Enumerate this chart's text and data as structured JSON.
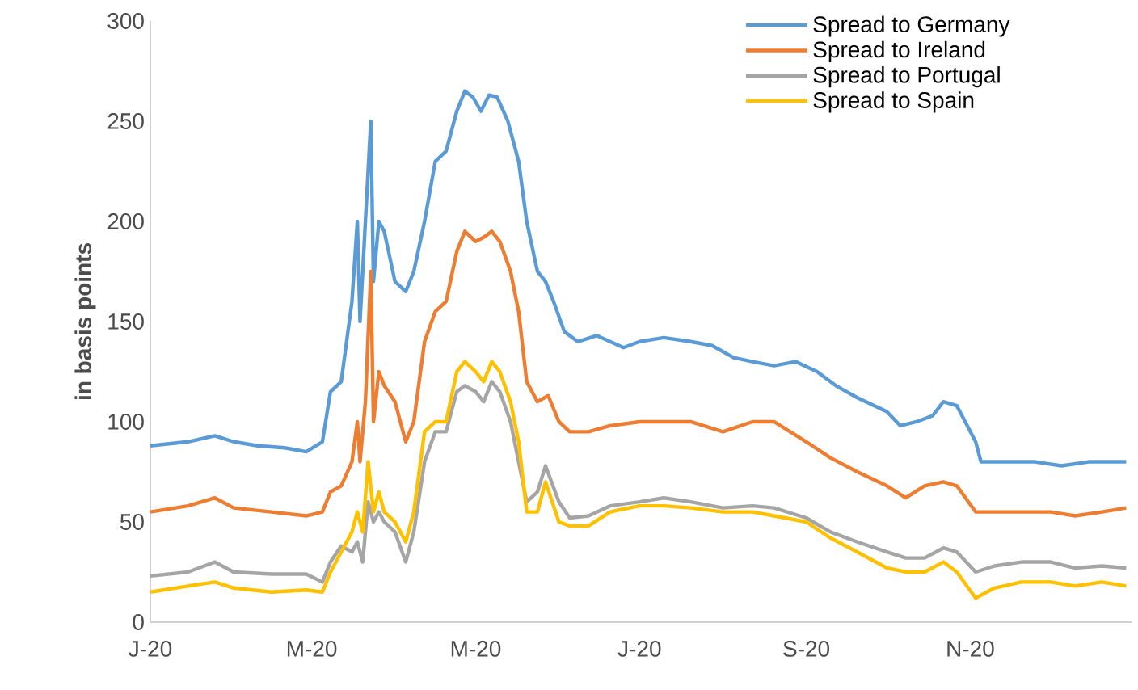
{
  "chart_data": {
    "type": "line",
    "ylabel": "in basis points",
    "xlim": [
      "2020-01-01",
      "2020-12-31"
    ],
    "ylim": [
      0,
      300
    ],
    "xticks": [
      {
        "value": "2020-01-01",
        "label": "J-20"
      },
      {
        "value": "2020-03-01",
        "label": "M-20"
      },
      {
        "value": "2020-05-01",
        "label": "M-20"
      },
      {
        "value": "2020-07-01",
        "label": "J-20"
      },
      {
        "value": "2020-09-01",
        "label": "S-20"
      },
      {
        "value": "2020-11-01",
        "label": "N-20"
      }
    ],
    "yticks": [
      0,
      50,
      100,
      150,
      200,
      250,
      300
    ],
    "grid": false,
    "legend": "top right",
    "line_style": "solid",
    "marker": "none",
    "series": [
      {
        "name": "Spread to Germany",
        "color": "#5b9bd5",
        "x": [
          "2020-01-01",
          "2020-01-15",
          "2020-01-25",
          "2020-02-01",
          "2020-02-10",
          "2020-02-20",
          "2020-02-28",
          "2020-03-05",
          "2020-03-08",
          "2020-03-12",
          "2020-03-16",
          "2020-03-18",
          "2020-03-19",
          "2020-03-21",
          "2020-03-23",
          "2020-03-24",
          "2020-03-26",
          "2020-03-28",
          "2020-04-01",
          "2020-04-05",
          "2020-04-08",
          "2020-04-12",
          "2020-04-16",
          "2020-04-20",
          "2020-04-24",
          "2020-04-27",
          "2020-04-30",
          "2020-05-03",
          "2020-05-06",
          "2020-05-09",
          "2020-05-13",
          "2020-05-17",
          "2020-05-20",
          "2020-05-24",
          "2020-05-27",
          "2020-05-30",
          "2020-06-03",
          "2020-06-08",
          "2020-06-15",
          "2020-06-20",
          "2020-06-25",
          "2020-07-01",
          "2020-07-10",
          "2020-07-20",
          "2020-07-28",
          "2020-08-05",
          "2020-08-12",
          "2020-08-20",
          "2020-08-28",
          "2020-09-05",
          "2020-09-12",
          "2020-09-20",
          "2020-10-01",
          "2020-10-06",
          "2020-10-12",
          "2020-10-18",
          "2020-10-22",
          "2020-10-27",
          "2020-11-03",
          "2020-11-05",
          "2020-11-15",
          "2020-11-25",
          "2020-12-05",
          "2020-12-15",
          "2020-12-25",
          "2020-12-29"
        ],
        "values": [
          88,
          90,
          93,
          90,
          88,
          87,
          85,
          90,
          115,
          120,
          160,
          200,
          150,
          200,
          250,
          170,
          200,
          195,
          170,
          165,
          175,
          200,
          230,
          235,
          255,
          265,
          262,
          255,
          263,
          262,
          250,
          230,
          200,
          175,
          170,
          160,
          145,
          140,
          143,
          140,
          137,
          140,
          142,
          140,
          138,
          132,
          130,
          128,
          130,
          125,
          118,
          112,
          105,
          98,
          100,
          103,
          110,
          108,
          90,
          80,
          80,
          80,
          78,
          80,
          80,
          80
        ]
      },
      {
        "name": "Spread to Ireland",
        "color": "#ed7d31",
        "x": [
          "2020-01-01",
          "2020-01-15",
          "2020-01-25",
          "2020-02-01",
          "2020-02-15",
          "2020-02-28",
          "2020-03-05",
          "2020-03-08",
          "2020-03-12",
          "2020-03-16",
          "2020-03-18",
          "2020-03-19",
          "2020-03-21",
          "2020-03-23",
          "2020-03-24",
          "2020-03-26",
          "2020-03-28",
          "2020-04-01",
          "2020-04-05",
          "2020-04-08",
          "2020-04-12",
          "2020-04-16",
          "2020-04-20",
          "2020-04-24",
          "2020-04-27",
          "2020-05-01",
          "2020-05-04",
          "2020-05-07",
          "2020-05-10",
          "2020-05-14",
          "2020-05-17",
          "2020-05-20",
          "2020-05-24",
          "2020-05-28",
          "2020-06-01",
          "2020-06-05",
          "2020-06-12",
          "2020-06-20",
          "2020-07-01",
          "2020-07-10",
          "2020-07-20",
          "2020-08-01",
          "2020-08-12",
          "2020-08-20",
          "2020-09-01",
          "2020-09-10",
          "2020-09-20",
          "2020-10-01",
          "2020-10-08",
          "2020-10-15",
          "2020-10-22",
          "2020-10-27",
          "2020-11-03",
          "2020-11-10",
          "2020-11-20",
          "2020-12-01",
          "2020-12-10",
          "2020-12-20",
          "2020-12-29"
        ],
        "values": [
          55,
          58,
          62,
          57,
          55,
          53,
          55,
          65,
          68,
          80,
          100,
          80,
          110,
          175,
          100,
          125,
          118,
          110,
          90,
          100,
          140,
          155,
          160,
          185,
          195,
          190,
          192,
          195,
          190,
          175,
          155,
          120,
          110,
          113,
          100,
          95,
          95,
          98,
          100,
          100,
          100,
          95,
          100,
          100,
          90,
          82,
          75,
          68,
          62,
          68,
          70,
          68,
          55,
          55,
          55,
          55,
          53,
          55,
          57
        ]
      },
      {
        "name": "Spread to Portugal",
        "color": "#a5a5a5",
        "x": [
          "2020-01-01",
          "2020-01-15",
          "2020-01-25",
          "2020-02-01",
          "2020-02-15",
          "2020-02-28",
          "2020-03-05",
          "2020-03-08",
          "2020-03-12",
          "2020-03-16",
          "2020-03-18",
          "2020-03-20",
          "2020-03-22",
          "2020-03-24",
          "2020-03-26",
          "2020-03-28",
          "2020-04-01",
          "2020-04-05",
          "2020-04-08",
          "2020-04-12",
          "2020-04-16",
          "2020-04-20",
          "2020-04-24",
          "2020-04-27",
          "2020-05-01",
          "2020-05-04",
          "2020-05-07",
          "2020-05-10",
          "2020-05-14",
          "2020-05-17",
          "2020-05-20",
          "2020-05-24",
          "2020-05-27",
          "2020-06-01",
          "2020-06-05",
          "2020-06-12",
          "2020-06-20",
          "2020-07-01",
          "2020-07-10",
          "2020-07-20",
          "2020-08-01",
          "2020-08-12",
          "2020-08-20",
          "2020-09-01",
          "2020-09-10",
          "2020-09-20",
          "2020-10-01",
          "2020-10-08",
          "2020-10-15",
          "2020-10-22",
          "2020-10-27",
          "2020-11-03",
          "2020-11-10",
          "2020-11-20",
          "2020-12-01",
          "2020-12-10",
          "2020-12-20",
          "2020-12-29"
        ],
        "values": [
          23,
          25,
          30,
          25,
          24,
          24,
          20,
          30,
          38,
          35,
          40,
          30,
          60,
          50,
          55,
          50,
          45,
          30,
          45,
          80,
          95,
          95,
          115,
          118,
          115,
          110,
          120,
          115,
          100,
          80,
          60,
          65,
          78,
          60,
          52,
          53,
          58,
          60,
          62,
          60,
          57,
          58,
          57,
          52,
          45,
          40,
          35,
          32,
          32,
          37,
          35,
          25,
          28,
          30,
          30,
          27,
          28,
          27
        ]
      },
      {
        "name": "Spread to Spain",
        "color": "#ffc000",
        "x": [
          "2020-01-01",
          "2020-01-15",
          "2020-01-25",
          "2020-02-01",
          "2020-02-15",
          "2020-02-28",
          "2020-03-05",
          "2020-03-08",
          "2020-03-12",
          "2020-03-16",
          "2020-03-18",
          "2020-03-20",
          "2020-03-22",
          "2020-03-24",
          "2020-03-26",
          "2020-03-28",
          "2020-04-01",
          "2020-04-05",
          "2020-04-08",
          "2020-04-12",
          "2020-04-16",
          "2020-04-20",
          "2020-04-24",
          "2020-04-27",
          "2020-05-01",
          "2020-05-04",
          "2020-05-07",
          "2020-05-10",
          "2020-05-14",
          "2020-05-17",
          "2020-05-20",
          "2020-05-24",
          "2020-05-27",
          "2020-06-01",
          "2020-06-05",
          "2020-06-12",
          "2020-06-20",
          "2020-07-01",
          "2020-07-10",
          "2020-07-20",
          "2020-08-01",
          "2020-08-12",
          "2020-08-20",
          "2020-09-01",
          "2020-09-10",
          "2020-09-20",
          "2020-10-01",
          "2020-10-08",
          "2020-10-15",
          "2020-10-22",
          "2020-10-27",
          "2020-11-03",
          "2020-11-10",
          "2020-11-20",
          "2020-12-01",
          "2020-12-10",
          "2020-12-20",
          "2020-12-29"
        ],
        "values": [
          15,
          18,
          20,
          17,
          15,
          16,
          15,
          25,
          35,
          45,
          55,
          45,
          80,
          55,
          65,
          55,
          50,
          40,
          55,
          95,
          100,
          100,
          125,
          130,
          125,
          120,
          130,
          125,
          110,
          90,
          55,
          55,
          70,
          50,
          48,
          48,
          55,
          58,
          58,
          57,
          55,
          55,
          53,
          50,
          42,
          35,
          27,
          25,
          25,
          30,
          25,
          12,
          17,
          20,
          20,
          18,
          20,
          18
        ]
      }
    ]
  }
}
